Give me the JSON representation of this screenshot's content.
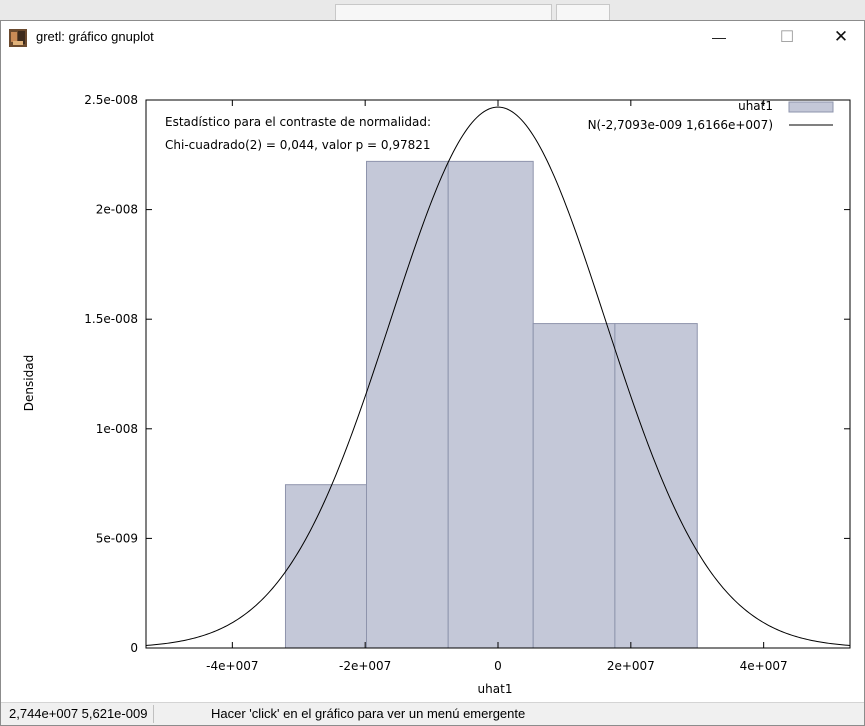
{
  "window": {
    "title": "gretl: gráfico gnuplot",
    "minimize_glyph": "—",
    "maximize_glyph": "☐",
    "close_glyph": "✕"
  },
  "icons": {
    "app": "gretl-app-icon",
    "minimize": "minimize-icon",
    "maximize": "maximize-icon",
    "close": "close-icon"
  },
  "colors": {
    "bar_fill": "#c4c8d8",
    "bar_edge": "#8e94ac",
    "curve": "#000000"
  },
  "statusbar": {
    "coords": "2,744e+007 5,621e-009",
    "message": "Hacer 'click' en el gráfico para ver un menú emergente"
  },
  "chart_data": {
    "type": "bar",
    "title": "",
    "xlabel": "uhat1",
    "ylabel": "Densidad",
    "xlim": [
      -53000000,
      53000000
    ],
    "ylim": [
      0,
      2.5e-08
    ],
    "xticks": [
      -40000000,
      -20000000,
      0,
      20000000,
      40000000
    ],
    "xtick_labels": [
      "-4e+007",
      "-2e+007",
      "0",
      "2e+007",
      "4e+007"
    ],
    "yticks": [
      0,
      5e-09,
      1e-08,
      1.5e-08,
      2e-08,
      2.5e-08
    ],
    "ytick_labels": [
      "0",
      "5e-009",
      "1e-008",
      "1.5e-008",
      "2e-008",
      "2.5e-008"
    ],
    "bins": [
      {
        "x0": -32000000,
        "x1": -19800000,
        "density": 7.45e-09
      },
      {
        "x0": -19800000,
        "x1": -7500000,
        "density": 2.22e-08
      },
      {
        "x0": -7500000,
        "x1": 5300000,
        "density": 2.22e-08
      },
      {
        "x0": 5300000,
        "x1": 17600000,
        "density": 1.48e-08
      },
      {
        "x0": 17600000,
        "x1": 30000000,
        "density": 1.48e-08
      }
    ],
    "annotations": [
      "Estadístico para el contraste de normalidad:",
      "Chi-cuadrado(2) = 0,044, valor p = 0,97821"
    ],
    "legend": {
      "placement": "top-right",
      "entries": [
        "uhat1",
        "N(-2,7093e-009 1,6166e+007)"
      ]
    },
    "normal_curve": {
      "label": "N(-2,7093e-009 1,6166e+007)",
      "mean": -2.7093e-09,
      "sd": 16166000
    },
    "grid": false
  }
}
